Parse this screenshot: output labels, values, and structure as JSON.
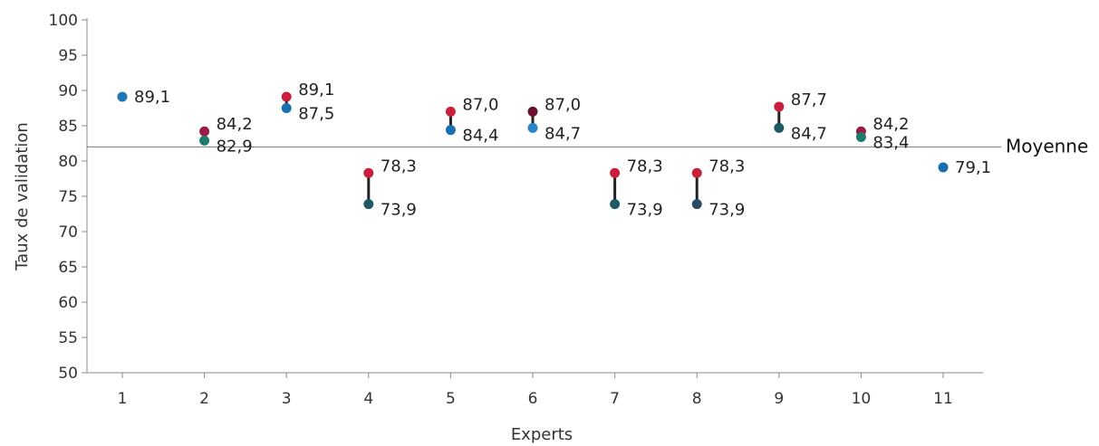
{
  "chart_data": {
    "type": "scatter",
    "title": "",
    "xlabel": "Experts",
    "ylabel": "Taux de validation",
    "ylim": [
      50,
      100
    ],
    "y_ticks": [
      "50",
      "55",
      "60",
      "65",
      "70",
      "75",
      "80",
      "85",
      "90",
      "95",
      "100"
    ],
    "categories": [
      "1",
      "2",
      "3",
      "4",
      "5",
      "6",
      "7",
      "8",
      "9",
      "10",
      "11"
    ],
    "grid": false,
    "reference_line": {
      "label": "Moyenne",
      "value": 82
    },
    "points": [
      {
        "x": "1",
        "values": [
          {
            "v": 89.1,
            "label": "89,1",
            "color": "#1f77b4"
          }
        ]
      },
      {
        "x": "2",
        "values": [
          {
            "v": 84.2,
            "label": "84,2",
            "color": "#9b1b47"
          },
          {
            "v": 82.9,
            "label": "82,9",
            "color": "#1e7a6a"
          }
        ]
      },
      {
        "x": "3",
        "values": [
          {
            "v": 89.1,
            "label": "89,1",
            "color": "#c8203a"
          },
          {
            "v": 87.5,
            "label": "87,5",
            "color": "#1a6fb0"
          }
        ]
      },
      {
        "x": "4",
        "values": [
          {
            "v": 78.3,
            "label": "78,3",
            "color": "#c8203a"
          },
          {
            "v": 73.9,
            "label": "73,9",
            "color": "#1e5a66"
          }
        ]
      },
      {
        "x": "5",
        "values": [
          {
            "v": 87.0,
            "label": "87,0",
            "color": "#c8203a"
          },
          {
            "v": 84.4,
            "label": "84,4",
            "color": "#1a6fb0"
          }
        ]
      },
      {
        "x": "6",
        "values": [
          {
            "v": 87.0,
            "label": "87,0",
            "color": "#6b1030"
          },
          {
            "v": 84.7,
            "label": "84,7",
            "color": "#2a86c8"
          }
        ]
      },
      {
        "x": "7",
        "values": [
          {
            "v": 78.3,
            "label": "78,3",
            "color": "#c8203a"
          },
          {
            "v": 73.9,
            "label": "73,9",
            "color": "#1e5a66"
          }
        ]
      },
      {
        "x": "8",
        "values": [
          {
            "v": 78.3,
            "label": "78,3",
            "color": "#c8203a"
          },
          {
            "v": 73.9,
            "label": "73,9",
            "color": "#2a4a66"
          }
        ]
      },
      {
        "x": "9",
        "values": [
          {
            "v": 87.7,
            "label": "87,7",
            "color": "#c8203a"
          },
          {
            "v": 84.7,
            "label": "84,7",
            "color": "#1e5a66"
          }
        ]
      },
      {
        "x": "10",
        "values": [
          {
            "v": 84.2,
            "label": "84,2",
            "color": "#9b1b47"
          },
          {
            "v": 83.4,
            "label": "83,4",
            "color": "#1e7a6a"
          }
        ]
      },
      {
        "x": "11",
        "values": [
          {
            "v": 79.1,
            "label": "79,1",
            "color": "#1a6fb0"
          }
        ]
      }
    ],
    "connector_color": "#222222"
  }
}
